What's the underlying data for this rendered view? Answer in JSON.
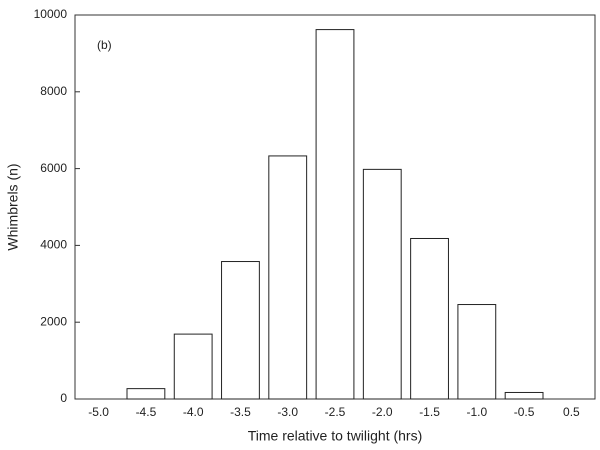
{
  "chart_data": {
    "type": "bar",
    "x_label": "Time relative to twilight (hrs)",
    "y_label": "Whimbrels (n)",
    "annotation": "(b)",
    "categories": [
      "-5.0",
      "-4.5",
      "-4.0",
      "-3.5",
      "-3.0",
      "-2.5",
      "-2.0",
      "-1.5",
      "-1.0",
      "-0.5",
      "0.5"
    ],
    "values": [
      0,
      270,
      1690,
      3580,
      6330,
      9620,
      5980,
      4180,
      2460,
      170,
      0
    ],
    "color": "#ffffff",
    "ylim": [
      0,
      10000
    ],
    "yticks": [
      0,
      2000,
      4000,
      6000,
      8000,
      10000
    ],
    "grid": false
  }
}
